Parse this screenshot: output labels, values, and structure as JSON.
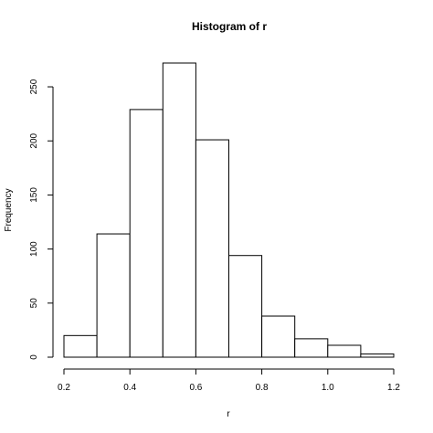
{
  "chart_data": {
    "type": "bar",
    "title": "Histogram of r",
    "xlabel": "r",
    "ylabel": "Frequency",
    "bins": [
      {
        "start": 0.2,
        "end": 0.3,
        "count": 20
      },
      {
        "start": 0.3,
        "end": 0.4,
        "count": 114
      },
      {
        "start": 0.4,
        "end": 0.5,
        "count": 229
      },
      {
        "start": 0.5,
        "end": 0.6,
        "count": 272
      },
      {
        "start": 0.6,
        "end": 0.7,
        "count": 201
      },
      {
        "start": 0.7,
        "end": 0.8,
        "count": 94
      },
      {
        "start": 0.8,
        "end": 0.9,
        "count": 38
      },
      {
        "start": 0.9,
        "end": 1.0,
        "count": 17
      },
      {
        "start": 1.0,
        "end": 1.1,
        "count": 11
      },
      {
        "start": 1.1,
        "end": 1.2,
        "count": 3
      }
    ],
    "xlim": [
      0.2,
      1.2
    ],
    "ylim": [
      0,
      272
    ],
    "x_ticks": [
      "0.2",
      "0.4",
      "0.6",
      "0.8",
      "1.0",
      "1.2"
    ],
    "y_ticks": [
      "0",
      "50",
      "100",
      "150",
      "200",
      "250"
    ],
    "grid": false
  }
}
